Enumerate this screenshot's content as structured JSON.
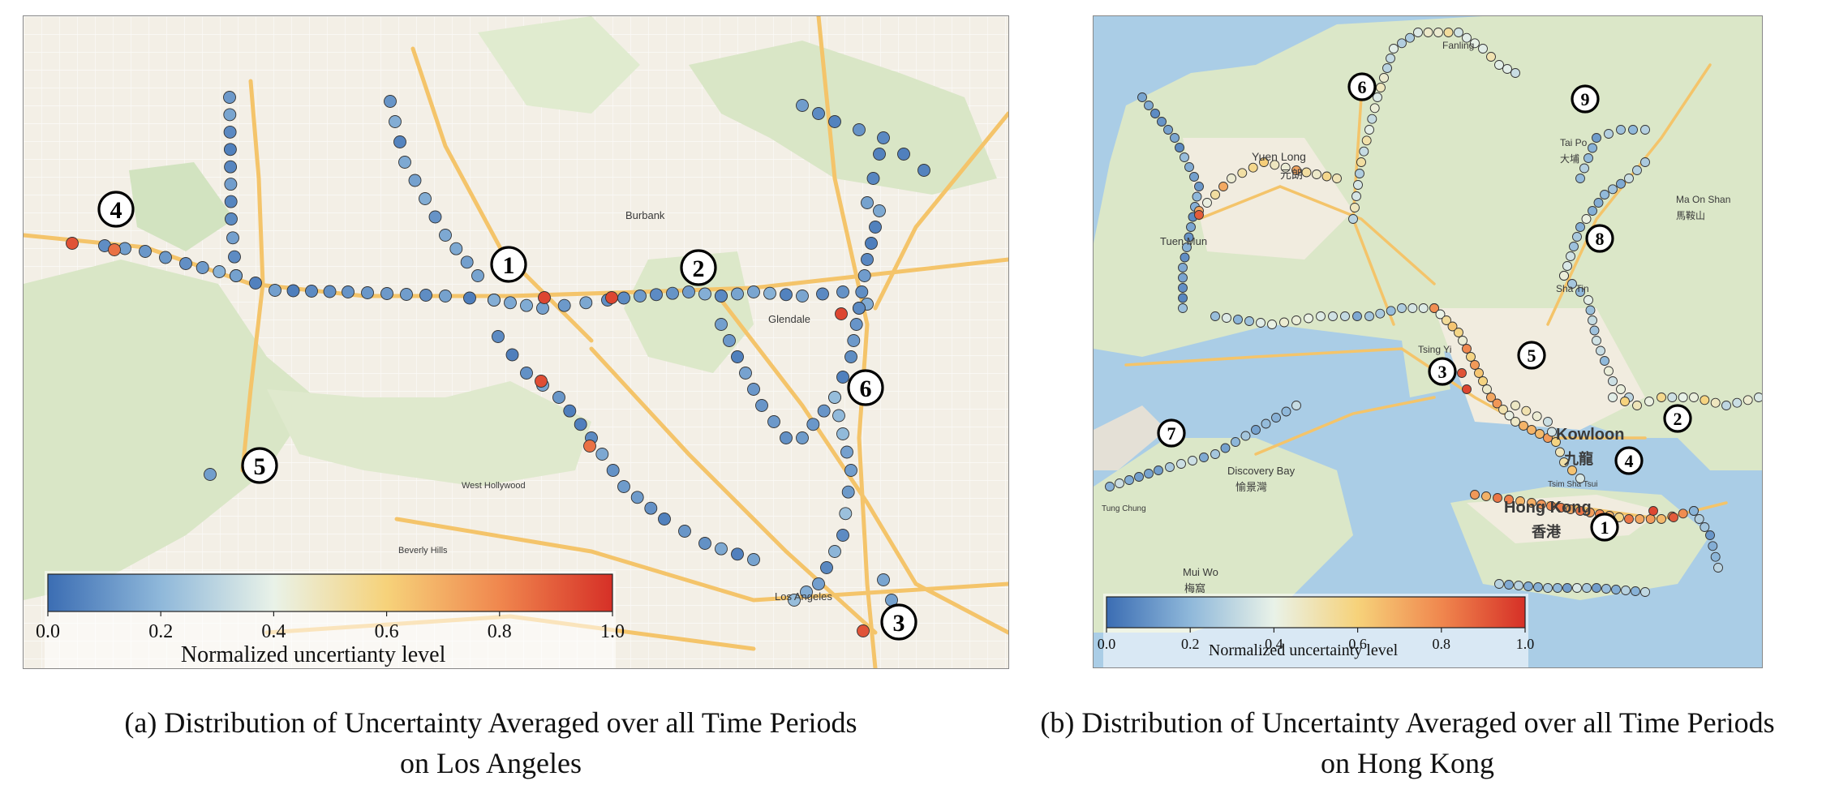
{
  "panels": [
    {
      "id": "a",
      "caption_line1": "(a)  Distribution of Uncertainty Averaged over all Time Periods",
      "caption_line2": "on Los Angeles",
      "place_labels": [
        "Burbank",
        "Glendale",
        "West Hollywood",
        "Beverly Hills",
        "Los Angeles"
      ],
      "region_markers": [
        "1",
        "2",
        "3",
        "4",
        "5",
        "6"
      ],
      "colorbar": {
        "ticks": [
          "0.0",
          "0.2",
          "0.4",
          "0.6",
          "0.8",
          "1.0"
        ],
        "label": "Normalized uncertianty level"
      }
    },
    {
      "id": "b",
      "caption_line1": "(b) Distribution of Uncertainty Averaged over all Time Periods",
      "caption_line2": "on Hong Kong",
      "place_labels": [
        "Yuen Long",
        "元朗",
        "Tuen Mun",
        "Tsing Yi",
        "Kowloon",
        "九龍",
        "Hong Kong",
        "香港",
        "Discovery Bay",
        "愉景灣",
        "Mui Wo",
        "梅窩",
        "Tai Po",
        "大埔",
        "Ma On Shan",
        "馬鞍山",
        "Sha Tin",
        "Tsim Sha Tsui",
        "Fanling",
        "Tung Chung"
      ],
      "region_markers": [
        "1",
        "2",
        "3",
        "4",
        "5",
        "6",
        "7",
        "8",
        "9"
      ],
      "colorbar": {
        "ticks": [
          "0.0",
          "0.2",
          "0.4",
          "0.6",
          "0.8",
          "1.0"
        ],
        "label": "Normalized uncertainty level"
      }
    }
  ],
  "colorscale": {
    "stops": [
      {
        "t": 0.0,
        "color": "#3b6db3"
      },
      {
        "t": 0.2,
        "color": "#8fb8da"
      },
      {
        "t": 0.4,
        "color": "#e9f2e8"
      },
      {
        "t": 0.6,
        "color": "#f6d27a"
      },
      {
        "t": 0.8,
        "color": "#f0874e"
      },
      {
        "t": 1.0,
        "color": "#d63027"
      }
    ]
  },
  "map_colors": {
    "land": "#f3efe6",
    "park": "#d9e6c6",
    "water": "#aacde6",
    "road": "#f4c46a",
    "street": "#ffffff"
  }
}
